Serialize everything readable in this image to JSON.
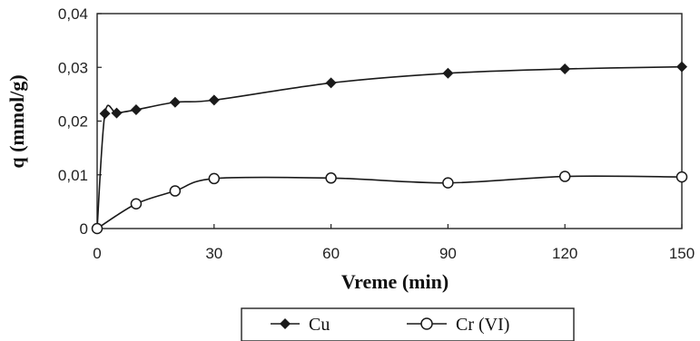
{
  "chart_data": {
    "type": "line",
    "xlabel": "Vreme (min)",
    "ylabel": "q (mmol/g)",
    "xlim": [
      0,
      150
    ],
    "ylim": [
      0,
      0.04
    ],
    "x_ticks": [
      0,
      30,
      60,
      90,
      120,
      150
    ],
    "x_tick_labels": [
      "0",
      "30",
      "60",
      "90",
      "120",
      "150"
    ],
    "y_ticks": [
      0,
      0.01,
      0.02,
      0.03,
      0.04
    ],
    "y_tick_labels": [
      "0",
      "0,01",
      "0,02",
      "0,03",
      "0,04"
    ],
    "grid": false,
    "legend_position": "bottom",
    "series": [
      {
        "name": "Cu",
        "marker": "filled-diamond",
        "color": "#1a1a1a",
        "x": [
          0,
          2,
          5,
          10,
          20,
          30,
          60,
          90,
          120,
          150
        ],
        "y": [
          0,
          0.0214,
          0.0215,
          0.0221,
          0.0235,
          0.0239,
          0.0271,
          0.0289,
          0.0297,
          0.0301
        ]
      },
      {
        "name": "Cr (VI)",
        "marker": "open-circle",
        "color": "#1a1a1a",
        "x": [
          0,
          10,
          20,
          30,
          60,
          90,
          120,
          150
        ],
        "y": [
          0,
          0.0046,
          0.007,
          0.0093,
          0.0094,
          0.0085,
          0.0097,
          0.0096
        ]
      }
    ]
  }
}
